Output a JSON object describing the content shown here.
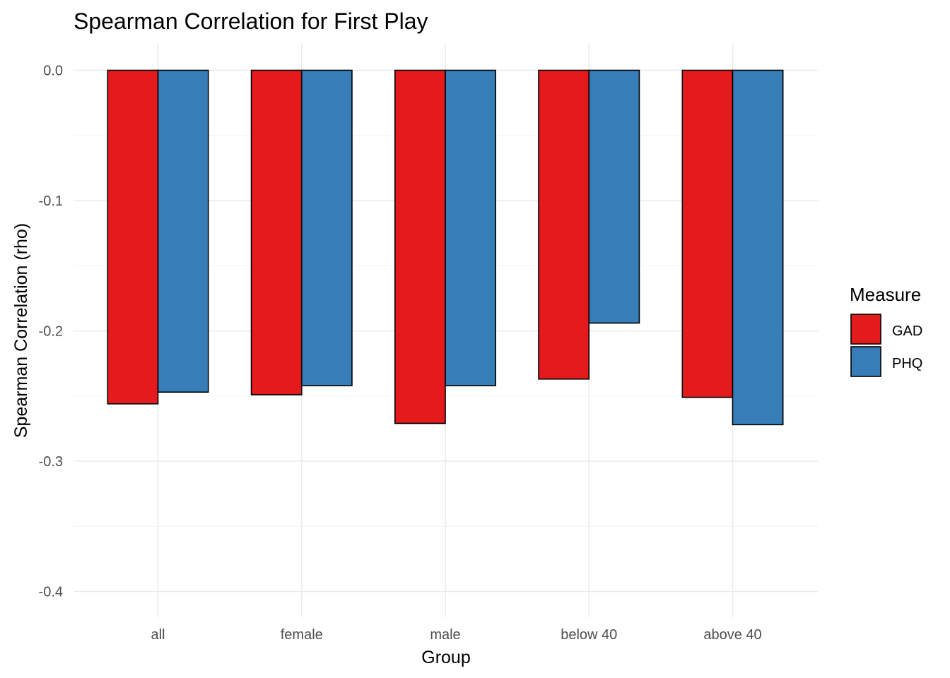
{
  "chart_data": {
    "type": "bar",
    "title": "Spearman Correlation for First Play",
    "xlabel": "Group",
    "ylabel": "Spearman Correlation (rho)",
    "categories": [
      "all",
      "female",
      "male",
      "below 40",
      "above 40"
    ],
    "series": [
      {
        "name": "GAD",
        "color": "#e41a1c",
        "values": [
          -0.256,
          -0.249,
          -0.271,
          -0.237,
          -0.251
        ]
      },
      {
        "name": "PHQ",
        "color": "#377eb8",
        "values": [
          -0.247,
          -0.242,
          -0.242,
          -0.194,
          -0.272
        ]
      }
    ],
    "ylim": [
      -0.42,
      0.02
    ],
    "yticks": [
      0.0,
      -0.1,
      -0.2,
      -0.3,
      -0.4
    ],
    "ytick_labels": [
      "0.0",
      "-0.1",
      "-0.2",
      "-0.3",
      "-0.4"
    ],
    "legend": {
      "title": "Measure",
      "placement": "right"
    },
    "grid": true
  }
}
